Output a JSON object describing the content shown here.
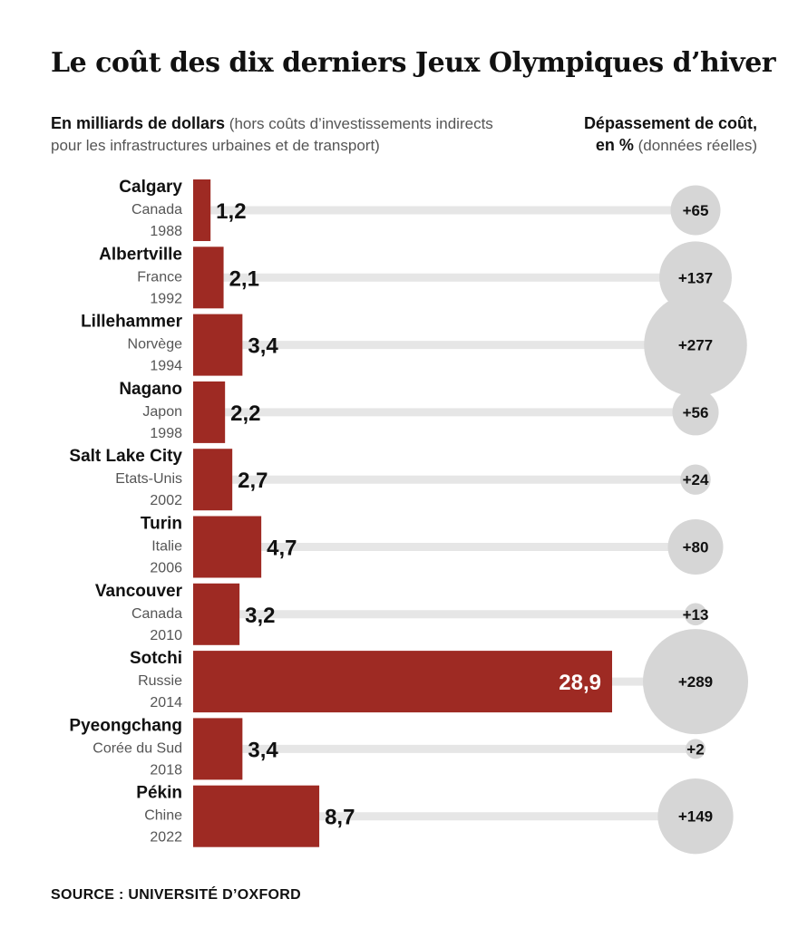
{
  "title": "Le coût des dix derniers Jeux Olympiques d’hiver",
  "left_header": {
    "strong": "En milliards de dollars",
    "rest": " (hors coûts d’investissements indirects pour les infrastructures urbaines et de transport)"
  },
  "right_header": {
    "strong_line1": "Dépassement de coût,",
    "strong_line2": "en %",
    "rest": " (données réelles)"
  },
  "source": "SOURCE : UNIVERSITÉ D’OXFORD",
  "colors": {
    "bar": "#9e2a23",
    "track": "#e6e6e6",
    "bubble": "#d6d6d6",
    "label_outside": "#111111",
    "label_inside": "#ffffff"
  },
  "chart_data": {
    "type": "bar",
    "orientation": "horizontal",
    "title": "Le coût des dix derniers Jeux Olympiques d’hiver",
    "xlabel": "En milliards de dollars",
    "secondary_label": "Dépassement de coût, en % (données réelles)",
    "categories": [
      {
        "city": "Calgary",
        "country": "Canada",
        "year": "1988",
        "value": 1.2,
        "value_label": "1,2",
        "overrun": 65,
        "overrun_label": "+65"
      },
      {
        "city": "Albertville",
        "country": "France",
        "year": "1992",
        "value": 2.1,
        "value_label": "2,1",
        "overrun": 137,
        "overrun_label": "+137"
      },
      {
        "city": "Lillehammer",
        "country": "Norvège",
        "year": "1994",
        "value": 3.4,
        "value_label": "3,4",
        "overrun": 277,
        "overrun_label": "+277"
      },
      {
        "city": "Nagano",
        "country": "Japon",
        "year": "1998",
        "value": 2.2,
        "value_label": "2,2",
        "overrun": 56,
        "overrun_label": "+56"
      },
      {
        "city": "Salt Lake City",
        "country": "Etats-Unis",
        "year": "2002",
        "value": 2.7,
        "value_label": "2,7",
        "overrun": 24,
        "overrun_label": "+24"
      },
      {
        "city": "Turin",
        "country": "Italie",
        "year": "2006",
        "value": 4.7,
        "value_label": "4,7",
        "overrun": 80,
        "overrun_label": "+80"
      },
      {
        "city": "Vancouver",
        "country": "Canada",
        "year": "2010",
        "value": 3.2,
        "value_label": "3,2",
        "overrun": 13,
        "overrun_label": "+13"
      },
      {
        "city": "Sotchi",
        "country": "Russie",
        "year": "2014",
        "value": 28.9,
        "value_label": "28,9",
        "overrun": 289,
        "overrun_label": "+289"
      },
      {
        "city": "Pyeongchang",
        "country": "Corée du Sud",
        "year": "2018",
        "value": 3.4,
        "value_label": "3,4",
        "overrun": 2,
        "overrun_label": "+2"
      },
      {
        "city": "Pékin",
        "country": "Chine",
        "year": "2022",
        "value": 8.7,
        "value_label": "8,7",
        "overrun": 149,
        "overrun_label": "+149"
      }
    ],
    "xlim": [
      0,
      28.9
    ],
    "overrun_max": 289,
    "legend": "none",
    "grid": false
  }
}
